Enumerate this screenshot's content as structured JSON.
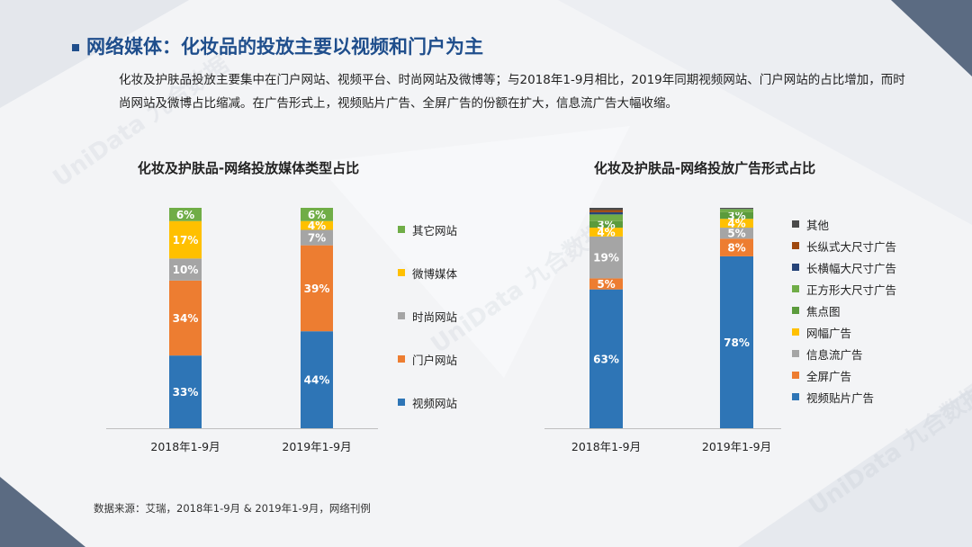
{
  "header": {
    "title": "网络媒体：化妆品的投放主要以视频和门户为主",
    "description": "化妆及护肤品投放主要集中在门户网站、视频平台、时尚网站及微博等；与2018年1-9月相比，2019年同期视频网站、门户网站的占比增加，而时尚网站及微博占比缩减。在广告形式上，视频贴片广告、全屏广告的份额在扩大，信息流广告大幅收缩。"
  },
  "watermark": "UniData 九合数据",
  "footer": {
    "source": "数据来源：艾瑞，2018年1-9月 & 2019年1-9月，网络刊例"
  },
  "chart_data": [
    {
      "type": "bar",
      "stacked": true,
      "title": "化妆及护肤品-网络投放媒体类型占比",
      "categories": [
        "2018年1-9月",
        "2019年1-9月"
      ],
      "ylim": [
        0,
        100
      ],
      "series": [
        {
          "name": "视频网站",
          "color": "#2e75b6",
          "values": [
            33,
            44
          ],
          "labels": [
            "33%",
            "44%"
          ]
        },
        {
          "name": "门户网站",
          "color": "#ed7d31",
          "values": [
            34,
            39
          ],
          "labels": [
            "34%",
            "39%"
          ]
        },
        {
          "name": "时尚网站",
          "color": "#a5a5a5",
          "values": [
            10,
            7
          ],
          "labels": [
            "10%",
            "7%"
          ]
        },
        {
          "name": "微博媒体",
          "color": "#ffc000",
          "values": [
            17,
            4
          ],
          "labels": [
            "17%",
            "4%"
          ]
        },
        {
          "name": "其它网站",
          "color": "#70ad47",
          "values": [
            6,
            6
          ],
          "labels": [
            "6%",
            "6%"
          ]
        }
      ],
      "legend_order": [
        "其它网站",
        "微博媒体",
        "时尚网站",
        "门户网站",
        "视频网站"
      ]
    },
    {
      "type": "bar",
      "stacked": true,
      "title": "化妆及护肤品-网络投放广告形式占比",
      "categories": [
        "2018年1-9月",
        "2019年1-9月"
      ],
      "ylim": [
        0,
        100
      ],
      "series": [
        {
          "name": "视频贴片广告",
          "color": "#2e75b6",
          "values": [
            63,
            78
          ],
          "labels": [
            "63%",
            "78%"
          ]
        },
        {
          "name": "全屏广告",
          "color": "#ed7d31",
          "values": [
            5,
            8
          ],
          "labels": [
            "5%",
            "8%"
          ]
        },
        {
          "name": "信息流广告",
          "color": "#a5a5a5",
          "values": [
            19,
            5
          ],
          "labels": [
            "19%",
            "5%"
          ]
        },
        {
          "name": "网幅广告",
          "color": "#ffc000",
          "values": [
            4,
            4
          ],
          "labels": [
            "4%",
            "4%"
          ]
        },
        {
          "name": "焦点图",
          "color": "#5b9b3c",
          "values": [
            3,
            3
          ],
          "labels": [
            "3%",
            "3%"
          ]
        },
        {
          "name": "正方形大尺寸广告",
          "color": "#70ad47",
          "values": [
            3,
            1.5
          ],
          "labels": [
            "",
            ""
          ]
        },
        {
          "name": "长横幅大尺寸广告",
          "color": "#264478",
          "values": [
            1,
            0.3
          ],
          "labels": [
            "",
            ""
          ]
        },
        {
          "name": "长纵式大尺寸广告",
          "color": "#9e480e",
          "values": [
            1,
            0.1
          ],
          "labels": [
            "",
            ""
          ]
        },
        {
          "name": "其他",
          "color": "#4a4a4a",
          "values": [
            1,
            0.1
          ],
          "labels": [
            "",
            ""
          ]
        }
      ],
      "legend_order": [
        "其他",
        "长纵式大尺寸广告",
        "长横幅大尺寸广告",
        "正方形大尺寸广告",
        "焦点图",
        "网幅广告",
        "信息流广告",
        "全屏广告",
        "视频贴片广告"
      ]
    }
  ]
}
